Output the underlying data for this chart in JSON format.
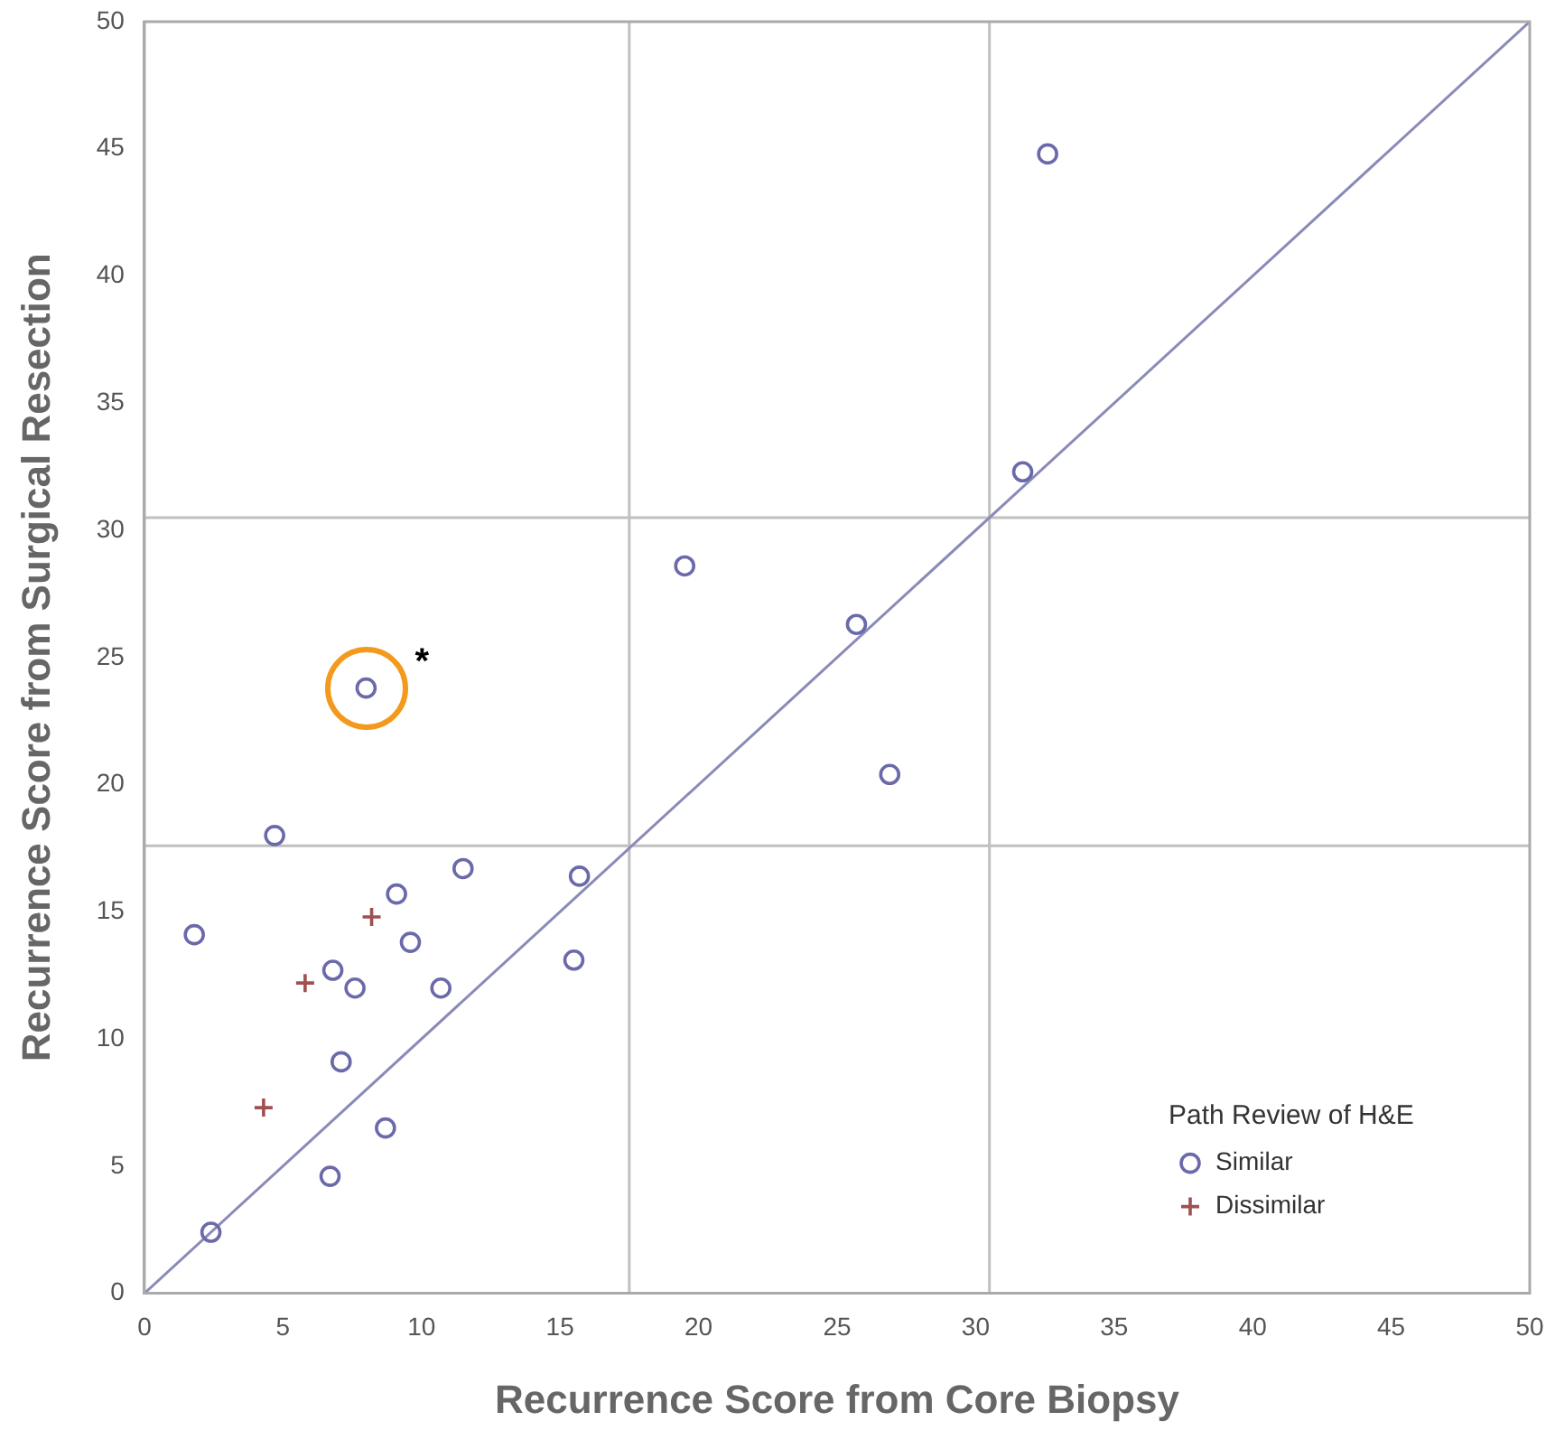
{
  "chart_data": {
    "type": "scatter",
    "xlabel": "Recurrence Score from Core Biopsy",
    "ylabel": "Recurrence Score from Surgical Resection",
    "legend_title": "Path Review of H&E",
    "legend": "bottom right",
    "grid": false,
    "xlim": [
      0,
      50
    ],
    "ylim": [
      0,
      50
    ],
    "xticks": [
      0,
      5,
      10,
      15,
      20,
      25,
      30,
      35,
      40,
      45,
      50
    ],
    "yticks": [
      0,
      5,
      10,
      15,
      20,
      25,
      30,
      35,
      40,
      45,
      50
    ],
    "series": [
      {
        "name": "Similar",
        "color": "#6a6aaa",
        "marker": "circle",
        "x": [
          32.6,
          31.7,
          19.5,
          25.7,
          26.9,
          8.0,
          4.7,
          11.5,
          15.7,
          9.1,
          1.8,
          9.6,
          6.8,
          7.6,
          10.7,
          15.5,
          7.1,
          8.7,
          6.7,
          2.4
        ],
        "values": [
          44.8,
          32.3,
          28.6,
          26.3,
          20.4,
          23.8,
          18.0,
          16.7,
          16.4,
          15.7,
          14.1,
          13.8,
          12.7,
          12.0,
          12.0,
          13.1,
          9.1,
          6.5,
          4.6,
          2.4
        ]
      },
      {
        "name": "Dissimilar",
        "color": "#a05050",
        "marker": "cross",
        "x": [
          8.2,
          5.8,
          4.3
        ],
        "values": [
          14.8,
          12.2,
          7.3
        ]
      },
      {
        "type": "line",
        "color": "#8a8ab8",
        "marker": "none",
        "x": [
          0,
          50
        ],
        "values": [
          0,
          50
        ]
      }
    ],
    "ref_lines": [
      {
        "axis": "x",
        "value": 17.5,
        "color": "#c0c0c0"
      },
      {
        "axis": "x",
        "value": 30.5,
        "color": "#c0c0c0"
      },
      {
        "axis": "y",
        "value": 17.6,
        "color": "#c0c0c0"
      },
      {
        "axis": "y",
        "value": 30.5,
        "color": "#c0c0c0"
      }
    ],
    "annotations": [
      {
        "text": "*",
        "x": 8.0,
        "y": 23.8
      }
    ]
  }
}
